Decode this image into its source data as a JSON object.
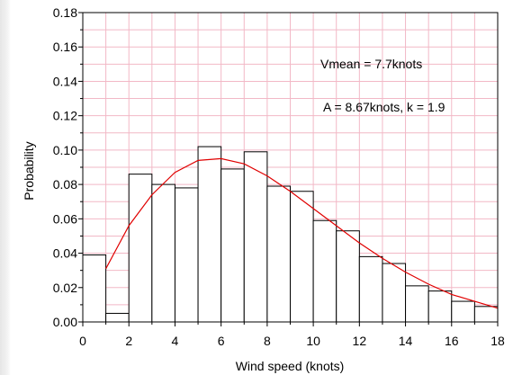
{
  "chart_data": {
    "type": "bar",
    "title": "",
    "xlabel": "Wind speed (knots)",
    "ylabel": "Probability",
    "xlim": [
      0,
      18
    ],
    "ylim": [
      0,
      0.18
    ],
    "x_ticks": [
      "0",
      "2",
      "4",
      "6",
      "8",
      "10",
      "12",
      "14",
      "16",
      "18"
    ],
    "y_ticks": [
      "0.00",
      "0.02",
      "0.04",
      "0.06",
      "0.08",
      "0.10",
      "0.12",
      "0.14",
      "0.16",
      "0.18"
    ],
    "grid": true,
    "bins": [
      {
        "x0": 0,
        "x1": 1,
        "value": 0.039
      },
      {
        "x0": 1,
        "x1": 2,
        "value": 0.005
      },
      {
        "x0": 2,
        "x1": 3,
        "value": 0.086
      },
      {
        "x0": 3,
        "x1": 4,
        "value": 0.08
      },
      {
        "x0": 4,
        "x1": 5,
        "value": 0.078
      },
      {
        "x0": 5,
        "x1": 6,
        "value": 0.102
      },
      {
        "x0": 6,
        "x1": 7,
        "value": 0.089
      },
      {
        "x0": 7,
        "x1": 8,
        "value": 0.099
      },
      {
        "x0": 8,
        "x1": 9,
        "value": 0.079
      },
      {
        "x0": 9,
        "x1": 10,
        "value": 0.076
      },
      {
        "x0": 10,
        "x1": 11,
        "value": 0.059
      },
      {
        "x0": 11,
        "x1": 12,
        "value": 0.053
      },
      {
        "x0": 12,
        "x1": 13,
        "value": 0.038
      },
      {
        "x0": 13,
        "x1": 14,
        "value": 0.034
      },
      {
        "x0": 14,
        "x1": 15,
        "value": 0.021
      },
      {
        "x0": 15,
        "x1": 16,
        "value": 0.018
      },
      {
        "x0": 16,
        "x1": 17,
        "value": 0.012
      },
      {
        "x0": 17,
        "x1": 18,
        "value": 0.009
      }
    ],
    "fit_curve": {
      "x": [
        1,
        2,
        3,
        4,
        5,
        6,
        7,
        8,
        9,
        10,
        11,
        12,
        13,
        14,
        15,
        16,
        17,
        18
      ],
      "y": [
        0.031,
        0.056,
        0.074,
        0.087,
        0.094,
        0.095,
        0.092,
        0.085,
        0.076,
        0.066,
        0.056,
        0.046,
        0.037,
        0.029,
        0.022,
        0.016,
        0.012,
        0.008
      ]
    },
    "annotations": [
      "Vmean = 7.7knots",
      "A = 8.67knots, k = 1.9"
    ],
    "colors": {
      "bar_stroke": "#000000",
      "bar_fill": "#ffffff",
      "curve": "#e00000",
      "grid": "#f2b8c6"
    }
  }
}
